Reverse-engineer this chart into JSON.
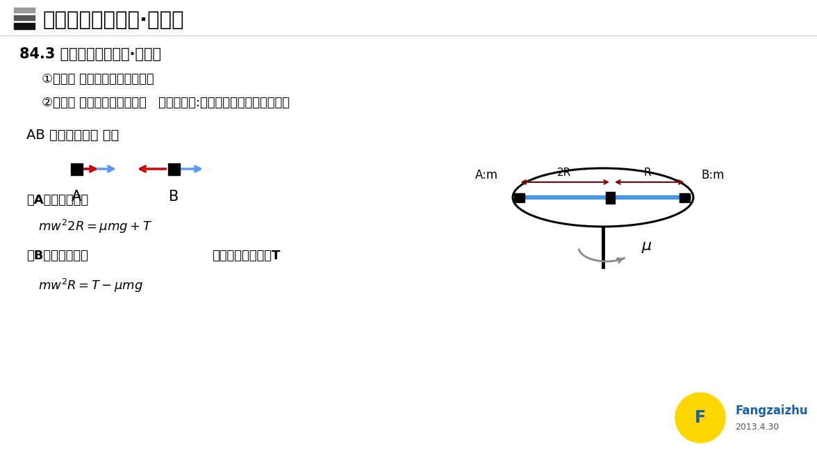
{
  "bg_color": "#ffffff",
  "title_bar_colors": [
    "#999999",
    "#555555",
    "#111111"
  ],
  "title_text": "圆周运动基本模型·水平面",
  "section_title": "84.3 圆周运动基本模型·水平面",
  "line1": "①概念： 在水平面上的圆周运动",
  "line2": "②核心： 对物体先描述向心力   再受力分析:遵循指向圆心减去背离圆心",
  "line3": "AB 为整理向左边 离开",
  "label_A": "A",
  "label_B": "B",
  "eq1_label": "对A写向心力方程",
  "eq1": "$mw^{2}2R = \\mu mg + T$",
  "eq2_label": "对B写向心力方程",
  "eq2": "$mw^{2}R = T - \\mu mg$",
  "eq3_label": "得到联合方程消除T",
  "fangzaizhu_text": "Fangzaizhu",
  "date_text": "2013.4.30"
}
